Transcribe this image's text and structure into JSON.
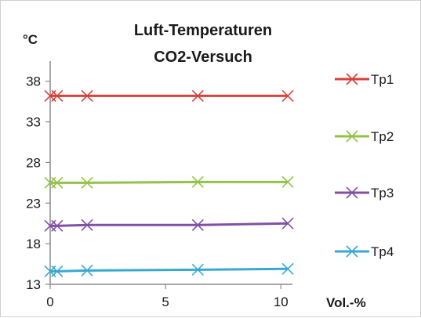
{
  "chart_data": {
    "type": "line",
    "title": [
      "Luft-Temperaturen",
      "CO2-Versuch"
    ],
    "ylabel": "°C",
    "xlabel": "Vol.-%",
    "xlim": [
      0,
      10.5
    ],
    "ylim": [
      13,
      40
    ],
    "xticks": [
      0,
      5,
      10
    ],
    "yticks": [
      13,
      18,
      23,
      28,
      33,
      38
    ],
    "grid": false,
    "legend_position": "right",
    "marker": "x",
    "x": [
      0,
      0.3,
      1.6,
      6.4,
      10.3
    ],
    "series": [
      {
        "name": "Tp1",
        "color": "#d9413a",
        "values": [
          36.2,
          36.2,
          36.2,
          36.2,
          36.2
        ]
      },
      {
        "name": "Tp2",
        "color": "#93c247",
        "values": [
          25.5,
          25.5,
          25.5,
          25.6,
          25.6
        ]
      },
      {
        "name": "Tp3",
        "color": "#8050a6",
        "values": [
          20.2,
          20.2,
          20.3,
          20.3,
          20.5
        ]
      },
      {
        "name": "Tp4",
        "color": "#37a9cf",
        "values": [
          14.6,
          14.6,
          14.7,
          14.8,
          14.9
        ]
      }
    ]
  }
}
